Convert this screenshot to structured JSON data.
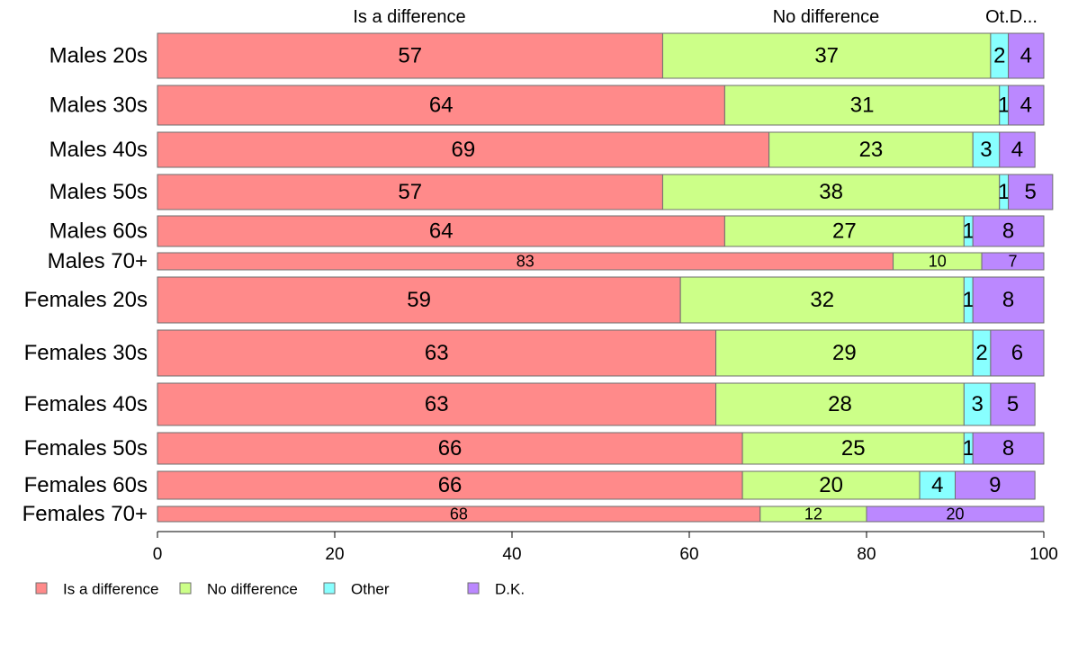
{
  "chart_data": {
    "type": "bar",
    "orientation": "horizontal",
    "stacked": true,
    "variable_width": true,
    "categories": [
      "Males 20s",
      "Males 30s",
      "Males 40s",
      "Males 50s",
      "Males 60s",
      "Males 70+",
      "Females 20s",
      "Females 30s",
      "Females 40s",
      "Females 50s",
      "Females 60s",
      "Females 70+"
    ],
    "series": [
      {
        "name": "Is a difference",
        "color": "#ff8a8a",
        "values": [
          57,
          64,
          69,
          57,
          64,
          83,
          59,
          63,
          63,
          66,
          66,
          68
        ]
      },
      {
        "name": "No difference",
        "color": "#ccff88",
        "values": [
          37,
          31,
          23,
          38,
          27,
          10,
          32,
          29,
          28,
          25,
          20,
          12
        ]
      },
      {
        "name": "Other",
        "color": "#88ffff",
        "values": [
          2,
          1,
          3,
          1,
          1,
          0,
          1,
          2,
          3,
          1,
          4,
          0
        ]
      },
      {
        "name": "D.K.",
        "color": "#bb88ff",
        "values": [
          4,
          4,
          4,
          5,
          8,
          7,
          8,
          6,
          5,
          8,
          9,
          20
        ]
      }
    ],
    "top_labels": [
      "Is a difference",
      "No difference",
      "Ot.D..."
    ],
    "xticks": [
      "0",
      "20",
      "40",
      "60",
      "80",
      "100"
    ],
    "xlim": [
      0,
      100
    ],
    "grid": false,
    "legend_position": "bottom-left",
    "title": "",
    "xlabel": "",
    "ylabel": ""
  }
}
